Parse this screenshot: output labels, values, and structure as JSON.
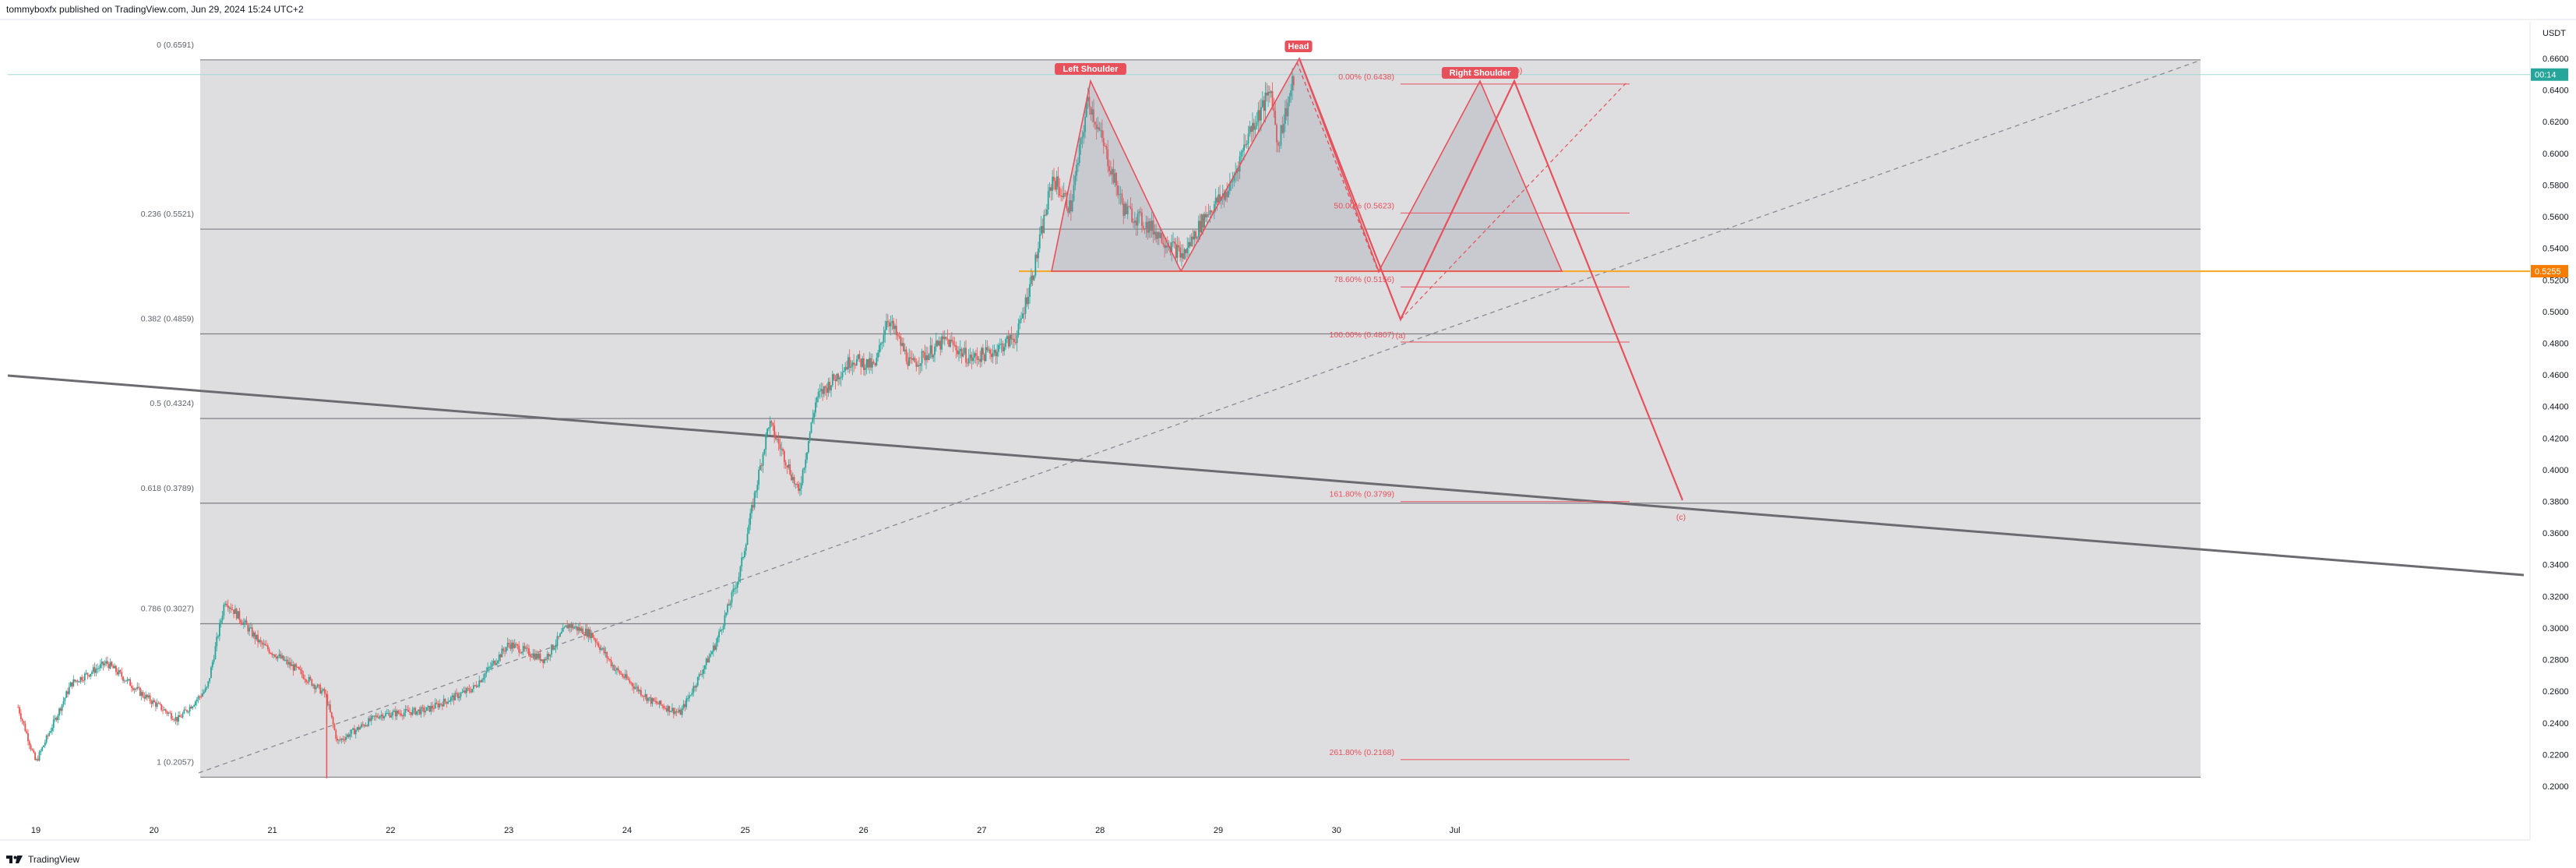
{
  "header": {
    "publisher_line": "tommyboxfx published on TradingView.com, Jun 29, 2024 15:24 UTC+2"
  },
  "footer": {
    "brand": "TradingView"
  },
  "colors": {
    "candle_up": "#26a69a",
    "candle_down": "#ef5350",
    "pattern": "#e8505b",
    "neckline": "#f5a623",
    "fib_zone": "#dcdcdf",
    "fib_line": "#7f7f85",
    "price_badge": "#26a69a",
    "level_badge": "#f57c00"
  },
  "icons": {
    "brand_logo": "tradingview-logo"
  },
  "chart_data": {
    "type": "candlestick",
    "symbol_currency": "USDT",
    "ylim": [
      0.195,
      0.668
    ],
    "x_ticks": [
      "19",
      "20",
      "21",
      "22",
      "23",
      "24",
      "25",
      "26",
      "27",
      "28",
      "29",
      "30",
      "Jul"
    ],
    "y_ticks": [
      "0.6600",
      "0.6400",
      "0.6200",
      "0.6000",
      "0.5800",
      "0.5600",
      "0.5400",
      "0.5200",
      "0.5000",
      "0.4800",
      "0.4600",
      "0.4400",
      "0.4200",
      "0.4000",
      "0.3800",
      "0.3600",
      "0.3400",
      "0.3200",
      "0.3000",
      "0.2800",
      "0.2600",
      "0.2400",
      "0.2200",
      "0.2000"
    ],
    "price_badges": [
      {
        "label": "00:14",
        "value": 0.6498
      },
      {
        "label": "0.5255",
        "value": 0.5255
      }
    ],
    "fib_retracement": [
      {
        "label": "0 (0.6591)",
        "value": 0.6591
      },
      {
        "label": "0.236 (0.5521)",
        "value": 0.5521
      },
      {
        "label": "0.382 (0.4859)",
        "value": 0.4859
      },
      {
        "label": "0.5 (0.4324)",
        "value": 0.4324
      },
      {
        "label": "0.618 (0.3789)",
        "value": 0.3789
      },
      {
        "label": "0.786 (0.3027)",
        "value": 0.3027
      },
      {
        "label": "1 (0.2057)",
        "value": 0.2057
      }
    ],
    "fib_extension": [
      {
        "label": "0.00% (0.6438)",
        "value": 0.6438
      },
      {
        "label": "50.00% (0.5623)",
        "value": 0.5623
      },
      {
        "label": "78.60% (0.5156)",
        "value": 0.5156
      },
      {
        "label": "100.00% (0.4807)",
        "value": 0.4807
      },
      {
        "label": "161.80% (0.3799)",
        "value": 0.3799
      },
      {
        "label": "261.80% (0.2168)",
        "value": 0.2168
      }
    ],
    "neckline": 0.5255,
    "pattern_labels": {
      "left_shoulder": "Left Shoulder",
      "head": "Head",
      "right_shoulder": "Right Shoulder"
    },
    "wave_labels": [
      "(a)",
      "(b)",
      "(c)"
    ],
    "price_path": [
      {
        "day": 18.85,
        "price": 0.25
      },
      {
        "day": 19.0,
        "price": 0.215
      },
      {
        "day": 19.3,
        "price": 0.265
      },
      {
        "day": 19.6,
        "price": 0.278
      },
      {
        "day": 19.9,
        "price": 0.258
      },
      {
        "day": 20.2,
        "price": 0.242
      },
      {
        "day": 20.45,
        "price": 0.262
      },
      {
        "day": 20.6,
        "price": 0.318
      },
      {
        "day": 20.9,
        "price": 0.29
      },
      {
        "day": 21.2,
        "price": 0.274
      },
      {
        "day": 21.45,
        "price": 0.258
      },
      {
        "day": 21.55,
        "price": 0.228
      },
      {
        "day": 21.9,
        "price": 0.245
      },
      {
        "day": 22.3,
        "price": 0.248
      },
      {
        "day": 22.7,
        "price": 0.262
      },
      {
        "day": 23.0,
        "price": 0.29
      },
      {
        "day": 23.3,
        "price": 0.28
      },
      {
        "day": 23.5,
        "price": 0.302
      },
      {
        "day": 23.7,
        "price": 0.296
      },
      {
        "day": 23.9,
        "price": 0.274
      },
      {
        "day": 24.2,
        "price": 0.254
      },
      {
        "day": 24.45,
        "price": 0.246
      },
      {
        "day": 24.75,
        "price": 0.29
      },
      {
        "day": 24.95,
        "price": 0.334
      },
      {
        "day": 25.1,
        "price": 0.392
      },
      {
        "day": 25.2,
        "price": 0.43
      },
      {
        "day": 25.35,
        "price": 0.405
      },
      {
        "day": 25.45,
        "price": 0.385
      },
      {
        "day": 25.6,
        "price": 0.445
      },
      {
        "day": 25.9,
        "price": 0.47
      },
      {
        "day": 26.1,
        "price": 0.465
      },
      {
        "day": 26.2,
        "price": 0.497
      },
      {
        "day": 26.4,
        "price": 0.466
      },
      {
        "day": 26.7,
        "price": 0.482
      },
      {
        "day": 26.9,
        "price": 0.47
      },
      {
        "day": 27.1,
        "price": 0.475
      },
      {
        "day": 27.3,
        "price": 0.485
      },
      {
        "day": 27.45,
        "price": 0.53
      },
      {
        "day": 27.6,
        "price": 0.585
      },
      {
        "day": 27.75,
        "price": 0.565
      },
      {
        "day": 27.9,
        "price": 0.635
      },
      {
        "day": 28.05,
        "price": 0.6
      },
      {
        "day": 28.2,
        "price": 0.565
      },
      {
        "day": 28.45,
        "price": 0.552
      },
      {
        "day": 28.7,
        "price": 0.535
      },
      {
        "day": 28.9,
        "price": 0.562
      },
      {
        "day": 29.1,
        "price": 0.578
      },
      {
        "day": 29.25,
        "price": 0.612
      },
      {
        "day": 29.45,
        "price": 0.64
      },
      {
        "day": 29.5,
        "price": 0.605
      },
      {
        "day": 29.65,
        "price": 0.65
      }
    ]
  }
}
